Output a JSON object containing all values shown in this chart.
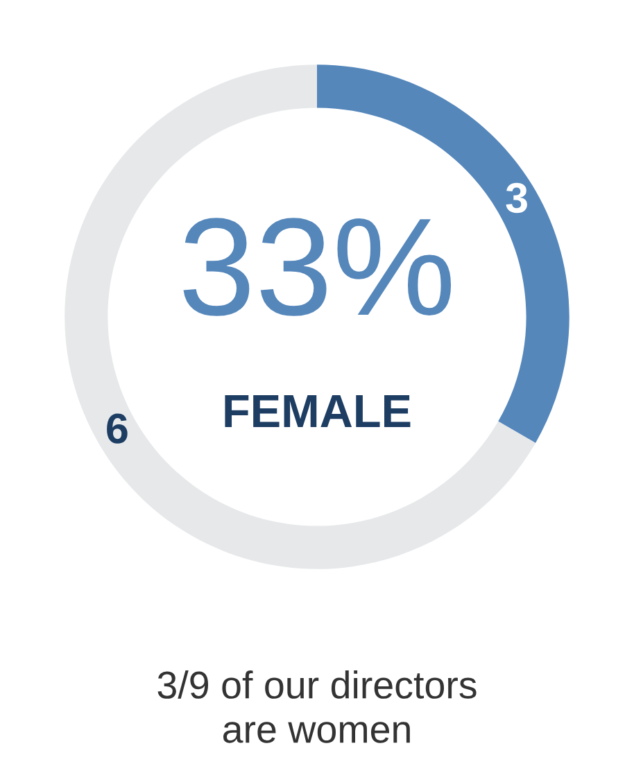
{
  "chart_data": {
    "type": "donut",
    "categories": [
      null,
      null
    ],
    "values": [
      3,
      6
    ],
    "colors": [
      "#5587bb",
      "#e6e8ea"
    ],
    "data_labels": true,
    "annotations": [
      "33%",
      "FEMALE",
      "3/9 of our directors\nare women"
    ]
  }
}
